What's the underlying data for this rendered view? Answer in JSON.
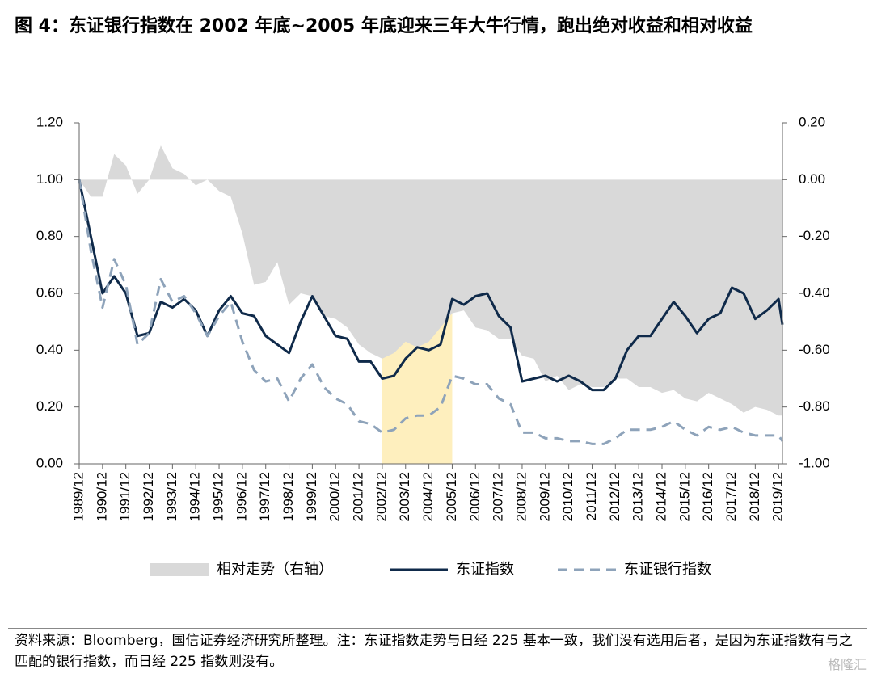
{
  "title": "图 4：东证银行指数在 2002 年底~2005 年底迎来三年大牛行情，跑出绝对收益和相对收益",
  "note": "资料来源：Bloomberg，国信证券经济研究所整理。注：东证指数走势与日经 225 基本一致，我们没有选用后者，是因为东证指数有与之匹配的银行指数，而日经 225 指数则没有。",
  "watermark": "格隆汇",
  "chart_data": {
    "type": "line",
    "x": [
      "1989/12",
      "1990/06",
      "1990/12",
      "1991/06",
      "1991/12",
      "1992/06",
      "1992/12",
      "1993/06",
      "1993/12",
      "1994/06",
      "1994/12",
      "1995/06",
      "1995/12",
      "1996/06",
      "1996/12",
      "1997/06",
      "1997/12",
      "1998/06",
      "1998/12",
      "1999/06",
      "1999/12",
      "2000/06",
      "2000/12",
      "2001/06",
      "2001/12",
      "2002/06",
      "2002/12",
      "2003/06",
      "2003/12",
      "2004/06",
      "2004/12",
      "2005/06",
      "2005/12",
      "2006/06",
      "2006/12",
      "2007/06",
      "2007/12",
      "2008/06",
      "2008/12",
      "2009/06",
      "2009/12",
      "2010/06",
      "2010/12",
      "2011/06",
      "2011/12",
      "2012/06",
      "2012/12",
      "2013/06",
      "2013/12",
      "2014/06",
      "2014/12",
      "2015/06",
      "2015/12",
      "2016/06",
      "2016/12",
      "2017/06",
      "2017/12",
      "2018/06",
      "2018/12",
      "2019/06",
      "2019/12",
      "2020/02"
    ],
    "series": [
      {
        "name": "相对走势（右轴）",
        "type": "area",
        "axis": "y2",
        "color": "#d9d9d9",
        "values": [
          0.0,
          -0.06,
          -0.06,
          0.09,
          0.05,
          -0.05,
          0.0,
          0.12,
          0.04,
          0.02,
          -0.02,
          0.0,
          -0.04,
          -0.06,
          -0.19,
          -0.37,
          -0.36,
          -0.29,
          -0.44,
          -0.4,
          -0.41,
          -0.48,
          -0.49,
          -0.52,
          -0.58,
          -0.61,
          -0.63,
          -0.61,
          -0.57,
          -0.59,
          -0.57,
          -0.52,
          -0.47,
          -0.46,
          -0.52,
          -0.53,
          -0.56,
          -0.56,
          -0.62,
          -0.63,
          -0.71,
          -0.69,
          -0.74,
          -0.72,
          -0.73,
          -0.73,
          -0.7,
          -0.7,
          -0.73,
          -0.73,
          -0.75,
          -0.74,
          -0.77,
          -0.78,
          -0.75,
          -0.77,
          -0.79,
          -0.82,
          -0.8,
          -0.81,
          -0.83,
          -0.83
        ]
      },
      {
        "name": "东证指数",
        "type": "line",
        "color": "#0f2a4a",
        "line_style": "solid",
        "values": [
          1.0,
          0.8,
          0.6,
          0.66,
          0.6,
          0.45,
          0.46,
          0.57,
          0.55,
          0.58,
          0.54,
          0.45,
          0.54,
          0.59,
          0.53,
          0.52,
          0.45,
          0.42,
          0.39,
          0.5,
          0.59,
          0.52,
          0.45,
          0.44,
          0.36,
          0.36,
          0.3,
          0.31,
          0.37,
          0.41,
          0.4,
          0.42,
          0.58,
          0.56,
          0.59,
          0.6,
          0.52,
          0.48,
          0.29,
          0.3,
          0.31,
          0.29,
          0.31,
          0.29,
          0.26,
          0.26,
          0.3,
          0.4,
          0.45,
          0.45,
          0.51,
          0.57,
          0.52,
          0.46,
          0.51,
          0.53,
          0.62,
          0.6,
          0.51,
          0.54,
          0.58,
          0.49
        ]
      },
      {
        "name": "东证银行指数",
        "type": "line",
        "color": "#8ea3ba",
        "line_style": "dashed",
        "values": [
          1.0,
          0.75,
          0.55,
          0.72,
          0.63,
          0.42,
          0.46,
          0.65,
          0.57,
          0.59,
          0.53,
          0.45,
          0.52,
          0.57,
          0.43,
          0.33,
          0.29,
          0.3,
          0.22,
          0.3,
          0.35,
          0.27,
          0.23,
          0.21,
          0.15,
          0.14,
          0.11,
          0.12,
          0.16,
          0.17,
          0.17,
          0.2,
          0.31,
          0.3,
          0.28,
          0.28,
          0.23,
          0.21,
          0.11,
          0.11,
          0.09,
          0.09,
          0.08,
          0.08,
          0.07,
          0.07,
          0.09,
          0.12,
          0.12,
          0.12,
          0.13,
          0.15,
          0.12,
          0.1,
          0.13,
          0.12,
          0.13,
          0.11,
          0.1,
          0.1,
          0.1,
          0.08
        ]
      }
    ],
    "highlight": {
      "from": "2002/12",
      "to": "2005/12",
      "ymax": 0.98,
      "color": "#fde9a8"
    },
    "xlim": [
      "1989/12",
      "2020/02"
    ],
    "xticks": [
      "1989/12",
      "1990/12",
      "1991/12",
      "1992/12",
      "1993/12",
      "1994/12",
      "1995/12",
      "1996/12",
      "1997/12",
      "1998/12",
      "1999/12",
      "2000/12",
      "2001/12",
      "2002/12",
      "2003/12",
      "2004/12",
      "2005/12",
      "2006/12",
      "2007/12",
      "2008/12",
      "2009/12",
      "2010/12",
      "2011/12",
      "2012/12",
      "2013/12",
      "2014/12",
      "2015/12",
      "2016/12",
      "2017/12",
      "2018/12",
      "2019/12"
    ],
    "ylim": [
      0,
      1.2
    ],
    "yticks": [
      {
        "value": 0,
        "label": "0.00"
      },
      {
        "value": 0.2,
        "label": "0.20"
      },
      {
        "value": 0.4,
        "label": "0.40"
      },
      {
        "value": 0.6,
        "label": "0.60"
      },
      {
        "value": 0.8,
        "label": "0.80"
      },
      {
        "value": 1,
        "label": "1.00"
      },
      {
        "value": 1.2,
        "label": "1.20"
      }
    ],
    "y2lim": [
      -1,
      0.2
    ],
    "y2ticks": [
      {
        "value": -1,
        "label": "-1.00"
      },
      {
        "value": -0.8,
        "label": "-0.80"
      },
      {
        "value": -0.6,
        "label": "-0.60"
      },
      {
        "value": -0.4,
        "label": "-0.40"
      },
      {
        "value": -0.2,
        "label": "-0.20"
      },
      {
        "value": 0,
        "label": "0.00"
      },
      {
        "value": 0.2,
        "label": "0.20"
      }
    ],
    "grid": false
  }
}
